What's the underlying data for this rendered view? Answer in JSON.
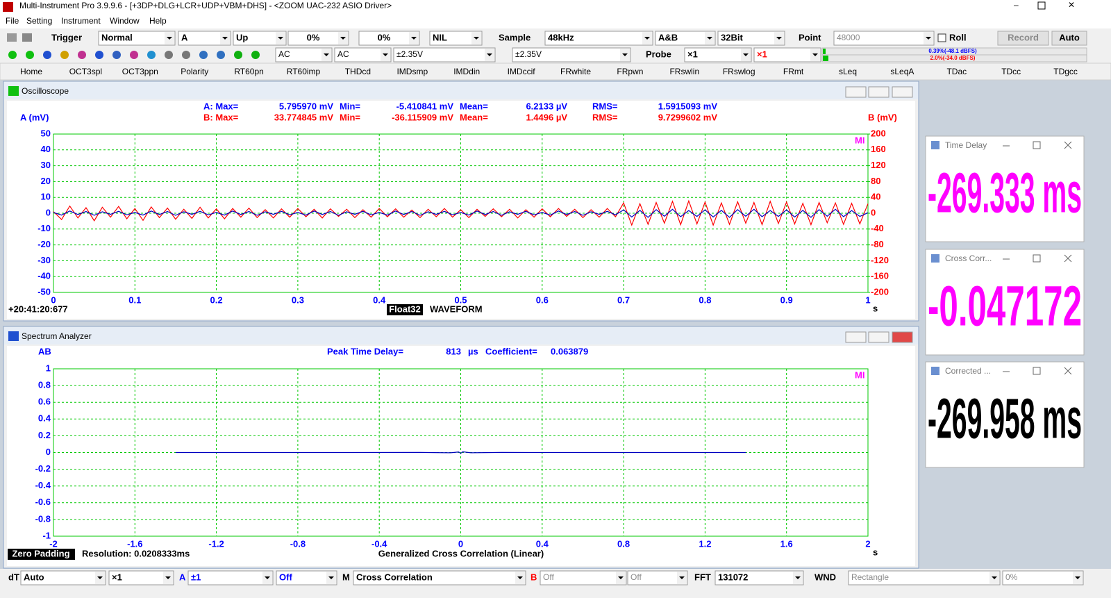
{
  "window": {
    "title": "Multi-Instrument Pro 3.9.9.6  -  [+3DP+DLG+LCR+UDP+VBM+DHS]  -  <ZOOM UAC-232 ASIO Driver>"
  },
  "menu": [
    "File",
    "Setting",
    "Instrument",
    "Window",
    "Help"
  ],
  "toolbar1": {
    "trigger": "Trigger",
    "mode": "Normal",
    "channel": "A",
    "edge": "Up",
    "level": "0%",
    "delay": "0%",
    "filter": "NIL",
    "sample_label": "Sample",
    "sample_rate": "48kHz",
    "channels": "A&B",
    "bit_depth": "32Bit",
    "point_label": "Point",
    "points": "48000",
    "roll": "Roll",
    "record": "Record",
    "auto": "Auto"
  },
  "toolbar2": {
    "coupling_a": "AC",
    "coupling_b": "AC",
    "range_a": "±2.35V",
    "range_b": "±2.35V",
    "probe_label": "Probe",
    "probe_a": "×1",
    "probe_b": "×1",
    "level_a": "0.39%(-48.1 dBFS)",
    "level_b": "2.0%(-34.0 dBFS)"
  },
  "tabs": [
    "Home",
    "OCT3spl",
    "OCT3ppn",
    "Polarity",
    "RT60pn",
    "RT60imp",
    "THDcd",
    "IMDsmp",
    "IMDdin",
    "IMDccif",
    "FRwhite",
    "FRpwn",
    "FRswlin",
    "FRswlog",
    "FRmt",
    "sLeq",
    "sLeqA",
    "TDac",
    "TDcc",
    "TDgcc"
  ],
  "chart_data": [
    {
      "type": "line",
      "title": "Oscilloscope",
      "ylabel": "A (mV)",
      "y2label": "B (mV)",
      "xlabel": "s",
      "stats_a": [
        "A: Max=",
        "5.795970 mV",
        "Min=",
        "-5.410841 mV",
        "Mean=",
        "6.2133  µV",
        "RMS=",
        "1.5915093 mV"
      ],
      "stats_b": [
        "B: Max=",
        "33.774845 mV",
        "Min=",
        "-36.115909 mV",
        "Mean=",
        "1.4496  µV",
        "RMS=",
        "9.7299602 mV"
      ],
      "timestamp": "+20:41:20:677",
      "format": "Float32",
      "mode": "WAVEFORM",
      "logo": "MI",
      "xlim": [
        0,
        1
      ],
      "xticks": [
        0,
        0.1,
        0.2,
        0.3,
        0.4,
        0.5,
        0.6,
        0.7,
        0.8,
        0.9,
        1
      ],
      "ylim": [
        -50,
        50
      ],
      "yticks": [
        -50,
        -40,
        -30,
        -20,
        -10,
        0,
        10,
        20,
        30,
        40,
        50
      ],
      "y2lim": [
        -200,
        200
      ],
      "y2ticks": [
        -200,
        -160,
        -120,
        -80,
        -40,
        0,
        40,
        80,
        120,
        160,
        200
      ],
      "grid": true,
      "x": [
        0,
        0.01,
        0.02,
        0.03,
        0.04,
        0.05,
        0.06,
        0.07,
        0.08,
        0.09,
        0.1,
        0.11,
        0.12,
        0.13,
        0.14,
        0.15,
        0.16,
        0.17,
        0.18,
        0.19,
        0.2,
        0.21,
        0.22,
        0.23,
        0.24,
        0.25,
        0.26,
        0.27,
        0.28,
        0.29,
        0.3,
        0.31,
        0.32,
        0.33,
        0.34,
        0.35,
        0.36,
        0.37,
        0.38,
        0.39,
        0.4,
        0.41,
        0.42,
        0.43,
        0.44,
        0.45,
        0.46,
        0.47,
        0.48,
        0.49,
        0.5,
        0.51,
        0.52,
        0.53,
        0.54,
        0.55,
        0.56,
        0.57,
        0.58,
        0.59,
        0.6,
        0.61,
        0.62,
        0.63,
        0.64,
        0.65,
        0.66,
        0.67,
        0.68,
        0.69,
        0.7,
        0.71,
        0.72,
        0.73,
        0.74,
        0.75,
        0.76,
        0.77,
        0.78,
        0.79,
        0.8,
        0.81,
        0.82,
        0.83,
        0.84,
        0.85,
        0.86,
        0.87,
        0.88,
        0.89,
        0.9,
        0.91,
        0.92,
        0.93,
        0.94,
        0.95,
        0.96,
        0.97,
        0.98,
        0.99,
        1
      ],
      "series": [
        {
          "color": "#ff0000",
          "axis": "y2",
          "values": [
            4,
            -16,
            18,
            -12,
            14,
            -19,
            15,
            -10,
            17,
            -14,
            12,
            -18,
            16,
            -11,
            13,
            -15,
            10,
            -13,
            15,
            -12,
            11,
            -14,
            12,
            -10,
            13,
            -11,
            9,
            -12,
            11,
            -10,
            12,
            -9,
            10,
            -12,
            11,
            -8,
            10,
            -11,
            9,
            -10,
            12,
            -9,
            11,
            -10,
            8,
            -11,
            10,
            -9,
            12,
            -10,
            9,
            -11,
            10,
            -8,
            11,
            -9,
            10,
            -12,
            9,
            -10,
            11,
            -9,
            12,
            -8,
            10,
            -11,
            9,
            -10,
            12,
            -9,
            26,
            -30,
            24,
            -28,
            27,
            -25,
            30,
            -29,
            31,
            -27,
            28,
            -30,
            26,
            -28,
            29,
            -25,
            27,
            -29,
            30,
            -26,
            28,
            -27,
            25,
            -29,
            27,
            -24,
            26,
            -28,
            25,
            -27,
            24
          ]
        },
        {
          "color": "#0000c0",
          "values": [
            0.5,
            -1.2,
            1.4,
            -0.8,
            1.1,
            -1.3,
            0.9,
            -0.7,
            1.2,
            -1.0,
            0.5,
            -1.2,
            1.4,
            -0.8,
            1.1,
            -1.3,
            0.9,
            -0.7,
            1.2,
            -1.0,
            0.5,
            -1.2,
            1.4,
            -0.8,
            1.1,
            -1.3,
            0.9,
            -0.7,
            1.2,
            -1.0,
            0.5,
            -1.2,
            1.4,
            -0.8,
            1.1,
            -1.3,
            0.9,
            -0.7,
            1.2,
            -1.0,
            0.5,
            -1.2,
            1.4,
            -0.8,
            1.1,
            -1.3,
            0.9,
            -0.7,
            1.2,
            -1.0,
            0.5,
            -1.2,
            1.4,
            -0.8,
            1.1,
            -1.3,
            0.9,
            -0.7,
            1.2,
            -1.0,
            0.5,
            -1.2,
            1.4,
            -0.8,
            1.1,
            -1.3,
            0.9,
            -0.7,
            1.2,
            -1.0,
            2.1,
            -2.4,
            1.8,
            -2.6,
            2.3,
            -1.9,
            2.5,
            -2.2,
            1.7,
            -2.0,
            2.1,
            -2.4,
            1.8,
            -2.6,
            2.3,
            -1.9,
            2.5,
            -2.2,
            1.7,
            -2.0,
            2.1,
            -2.4,
            1.8,
            -2.6,
            2.3,
            -1.9,
            2.5,
            -2.2,
            1.7,
            -2.0,
            0.3
          ]
        }
      ]
    },
    {
      "type": "line",
      "title": "Spectrum Analyzer",
      "ylabel": "AB",
      "xlabel": "s",
      "peak": [
        "Peak Time Delay=",
        "813",
        "µs",
        "Coefficient=",
        "0.063879"
      ],
      "padding": "Zero Padding",
      "resolution": "Resolution: 0.0208333ms",
      "function": "Generalized Cross Correlation (Linear)",
      "logo": "MI",
      "xlim": [
        -2,
        2
      ],
      "xticks": [
        -2,
        -1.6,
        -1.2,
        -0.8,
        -0.4,
        0,
        0.4,
        0.8,
        1.2,
        1.6,
        2
      ],
      "ylim": [
        -1,
        1
      ],
      "yticks": [
        -1,
        -0.8,
        -0.6,
        -0.4,
        -0.2,
        0,
        0.2,
        0.4,
        0.6,
        0.8,
        1
      ],
      "grid": true,
      "x": [
        -1.4,
        -1.0,
        -0.6,
        -0.2,
        -0.05,
        -0.01,
        0,
        0.01,
        0.05,
        0.2,
        0.6,
        1.0,
        1.4
      ],
      "series": [
        {
          "color": "#0000c0",
          "values": [
            0,
            0,
            0,
            0.001,
            -0.003,
            0.006,
            -0.01,
            0.008,
            -0.003,
            0.001,
            0,
            0,
            0
          ]
        }
      ]
    }
  ],
  "panels": [
    {
      "title": "Time Delay",
      "value": "-269.333 ms"
    },
    {
      "title": "Cross Corr...",
      "value": "-0.047172"
    },
    {
      "title": "Corrected ...",
      "value": "-269.958 ms"
    }
  ],
  "status_bar": {
    "dt_label": "dT",
    "dt": "Auto",
    "dt_scale": "×1",
    "a_label": "A",
    "a_range": "±1",
    "a_mode": "Off",
    "m_label": "M",
    "m_function": "Cross Correlation",
    "b_label": "B",
    "b_range": "Off",
    "b_mode": "Off",
    "fft_label": "FFT",
    "fft_size": "131072",
    "wnd_label": "WND",
    "window": "Rectangle",
    "overlap": "0%"
  }
}
